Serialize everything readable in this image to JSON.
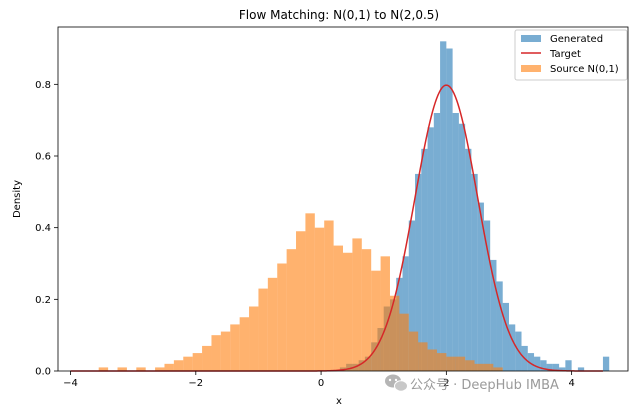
{
  "colors": {
    "generated": "#1f77b4",
    "target": "#d62728",
    "source": "#ff7f0e"
  },
  "watermark": {
    "icon": "wechat-icon",
    "text": "公众号 · DeepHub IMBA"
  },
  "chart_data": {
    "type": "histogram",
    "title": "Flow Matching: N(0,1) to N(2,0.5)",
    "xlabel": "x",
    "ylabel": "Density",
    "xlim": [
      -4.2,
      4.9
    ],
    "ylim": [
      0,
      0.96
    ],
    "xticks": [
      -4,
      -2,
      0,
      2,
      4
    ],
    "yticks": [
      0.0,
      0.2,
      0.4,
      0.6,
      0.8
    ],
    "xtick_labels": [
      "−4",
      "−2",
      "0",
      "2",
      "4"
    ],
    "ytick_labels": [
      "0.0",
      "0.2",
      "0.4",
      "0.6",
      "0.8"
    ],
    "grid": false,
    "legend": {
      "placement": "top-right",
      "entries": [
        "Generated",
        "Target",
        "Source N(0,1)"
      ]
    },
    "series": [
      {
        "name": "Generated",
        "kind": "histogram",
        "alpha": 0.6,
        "bins": [
          [
            0.3,
            0.4,
            0.01
          ],
          [
            0.4,
            0.5,
            0.02
          ],
          [
            0.5,
            0.6,
            0.02
          ],
          [
            0.6,
            0.7,
            0.03
          ],
          [
            0.7,
            0.8,
            0.04
          ],
          [
            0.8,
            0.9,
            0.08
          ],
          [
            0.9,
            1.0,
            0.12
          ],
          [
            1.0,
            1.1,
            0.18
          ],
          [
            1.1,
            1.2,
            0.2
          ],
          [
            1.2,
            1.3,
            0.26
          ],
          [
            1.3,
            1.4,
            0.32
          ],
          [
            1.4,
            1.5,
            0.42
          ],
          [
            1.5,
            1.6,
            0.55
          ],
          [
            1.6,
            1.7,
            0.62
          ],
          [
            1.7,
            1.8,
            0.68
          ],
          [
            1.8,
            1.9,
            0.72
          ],
          [
            1.9,
            2.0,
            0.92
          ],
          [
            2.0,
            2.1,
            0.9
          ],
          [
            2.1,
            2.2,
            0.72
          ],
          [
            2.2,
            2.3,
            0.69
          ],
          [
            2.3,
            2.4,
            0.62
          ],
          [
            2.4,
            2.5,
            0.55
          ],
          [
            2.5,
            2.6,
            0.47
          ],
          [
            2.6,
            2.7,
            0.42
          ],
          [
            2.7,
            2.8,
            0.31
          ],
          [
            2.8,
            2.9,
            0.25
          ],
          [
            2.9,
            3.0,
            0.19
          ],
          [
            3.0,
            3.1,
            0.13
          ],
          [
            3.1,
            3.2,
            0.11
          ],
          [
            3.2,
            3.3,
            0.07
          ],
          [
            3.3,
            3.4,
            0.05
          ],
          [
            3.4,
            3.5,
            0.04
          ],
          [
            3.5,
            3.6,
            0.03
          ],
          [
            3.6,
            3.7,
            0.02
          ],
          [
            3.7,
            3.8,
            0.02
          ],
          [
            3.8,
            3.9,
            0.01
          ],
          [
            3.9,
            4.0,
            0.03
          ],
          [
            4.1,
            4.2,
            0.01
          ],
          [
            4.5,
            4.6,
            0.04
          ]
        ]
      },
      {
        "name": "Target",
        "kind": "line",
        "distribution": {
          "family": "normal",
          "mean": 2,
          "std": 0.5
        },
        "x_range": [
          -4,
          4.5
        ]
      },
      {
        "name": "Source N(0,1)",
        "kind": "histogram",
        "alpha": 0.6,
        "bins": [
          [
            -3.55,
            -3.4,
            0.01
          ],
          [
            -3.25,
            -3.1,
            0.01
          ],
          [
            -2.95,
            -2.8,
            0.01
          ],
          [
            -2.65,
            -2.5,
            0.01
          ],
          [
            -2.5,
            -2.35,
            0.02
          ],
          [
            -2.35,
            -2.2,
            0.03
          ],
          [
            -2.2,
            -2.05,
            0.04
          ],
          [
            -2.05,
            -1.9,
            0.05
          ],
          [
            -1.9,
            -1.75,
            0.07
          ],
          [
            -1.75,
            -1.6,
            0.1
          ],
          [
            -1.6,
            -1.45,
            0.11
          ],
          [
            -1.45,
            -1.3,
            0.13
          ],
          [
            -1.3,
            -1.15,
            0.15
          ],
          [
            -1.15,
            -1.0,
            0.18
          ],
          [
            -1.0,
            -0.85,
            0.23
          ],
          [
            -0.85,
            -0.7,
            0.26
          ],
          [
            -0.7,
            -0.55,
            0.3
          ],
          [
            -0.55,
            -0.4,
            0.34
          ],
          [
            -0.4,
            -0.25,
            0.39
          ],
          [
            -0.25,
            -0.1,
            0.44
          ],
          [
            -0.1,
            0.05,
            0.4
          ],
          [
            0.05,
            0.2,
            0.42
          ],
          [
            0.2,
            0.35,
            0.35
          ],
          [
            0.35,
            0.5,
            0.33
          ],
          [
            0.5,
            0.65,
            0.37
          ],
          [
            0.65,
            0.8,
            0.34
          ],
          [
            0.8,
            0.95,
            0.28
          ],
          [
            0.95,
            1.1,
            0.32
          ],
          [
            1.1,
            1.25,
            0.21
          ],
          [
            1.25,
            1.4,
            0.16
          ],
          [
            1.4,
            1.55,
            0.11
          ],
          [
            1.55,
            1.7,
            0.08
          ],
          [
            1.7,
            1.85,
            0.06
          ],
          [
            1.85,
            2.0,
            0.05
          ],
          [
            2.0,
            2.15,
            0.04
          ],
          [
            2.15,
            2.3,
            0.04
          ],
          [
            2.3,
            2.45,
            0.03
          ],
          [
            2.45,
            2.6,
            0.02
          ],
          [
            2.6,
            2.75,
            0.02
          ],
          [
            2.75,
            2.9,
            0.01
          ]
        ]
      }
    ]
  }
}
